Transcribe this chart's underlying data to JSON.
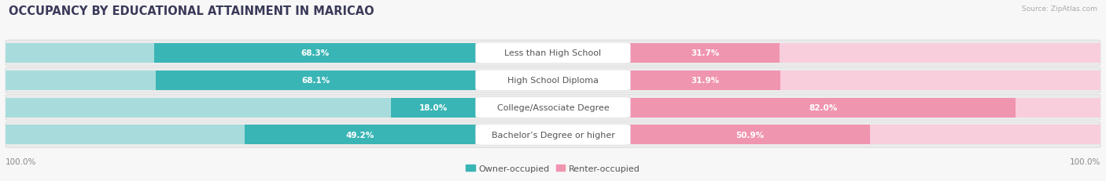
{
  "title": "OCCUPANCY BY EDUCATIONAL ATTAINMENT IN MARICAO",
  "source": "Source: ZipAtlas.com",
  "categories": [
    "Less than High School",
    "High School Diploma",
    "College/Associate Degree",
    "Bachelor’s Degree or higher"
  ],
  "owner_values": [
    68.3,
    68.1,
    18.0,
    49.2
  ],
  "renter_values": [
    31.7,
    31.9,
    82.0,
    50.9
  ],
  "owner_color": "#3ab5b5",
  "renter_color": "#f095b0",
  "owner_light_color": "#a8dcdc",
  "renter_light_color": "#f8cedd",
  "row_bg_color": "#ebebeb",
  "row_line_color": "#d8d8d8",
  "background_color": "#f7f7f7",
  "white": "#ffffff",
  "owner_label": "Owner-occupied",
  "renter_label": "Renter-occupied",
  "axis_max": 100.0,
  "title_fontsize": 10.5,
  "label_fontsize": 8,
  "value_fontsize": 7.5,
  "legend_fontsize": 8,
  "source_fontsize": 6.5,
  "figsize": [
    14.06,
    2.32
  ],
  "dpi": 100
}
